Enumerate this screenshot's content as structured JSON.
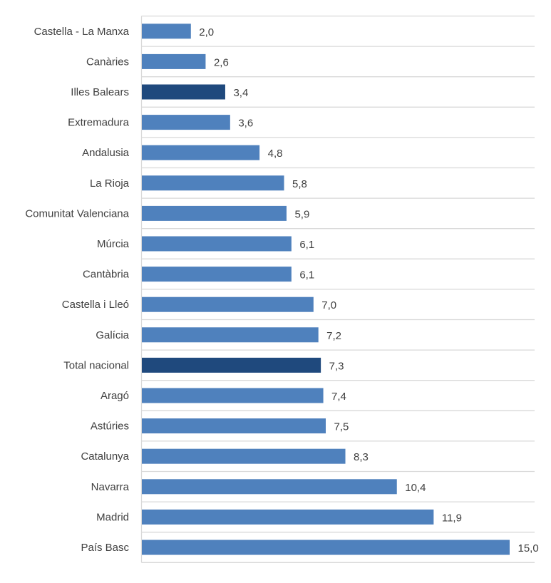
{
  "chart_data": {
    "type": "bar",
    "orientation": "horizontal",
    "categories": [
      "Castella - La Manxa",
      "Canàries",
      "Illes Balears",
      "Extremadura",
      "Andalusia",
      "La Rioja",
      "Comunitat Valenciana",
      "Múrcia",
      "Cantàbria",
      "Castella i Lleó",
      "Galícia",
      "Total nacional",
      "Aragó",
      "Astúries",
      "Catalunya",
      "Navarra",
      "Madrid",
      "País Basc"
    ],
    "values": [
      2.0,
      2.6,
      3.4,
      3.6,
      4.8,
      5.8,
      5.9,
      6.1,
      6.1,
      7.0,
      7.2,
      7.3,
      7.4,
      7.5,
      8.3,
      10.4,
      11.9,
      15.0
    ],
    "labels": [
      "2,0",
      "2,6",
      "3,4",
      "3,6",
      "4,8",
      "5,8",
      "5,9",
      "6,1",
      "6,1",
      "7,0",
      "7,2",
      "7,3",
      "7,4",
      "7,5",
      "8,3",
      "10,4",
      "11,9",
      "15,0"
    ],
    "highlighted": [
      "Illes Balears",
      "Total nacional"
    ],
    "xlim": [
      0,
      16
    ],
    "grid": "horizontal category separators",
    "legend": "none",
    "colors": {
      "default": "#4F81BD",
      "highlight": "#1F497D",
      "grid": "#D9D9D9"
    }
  }
}
